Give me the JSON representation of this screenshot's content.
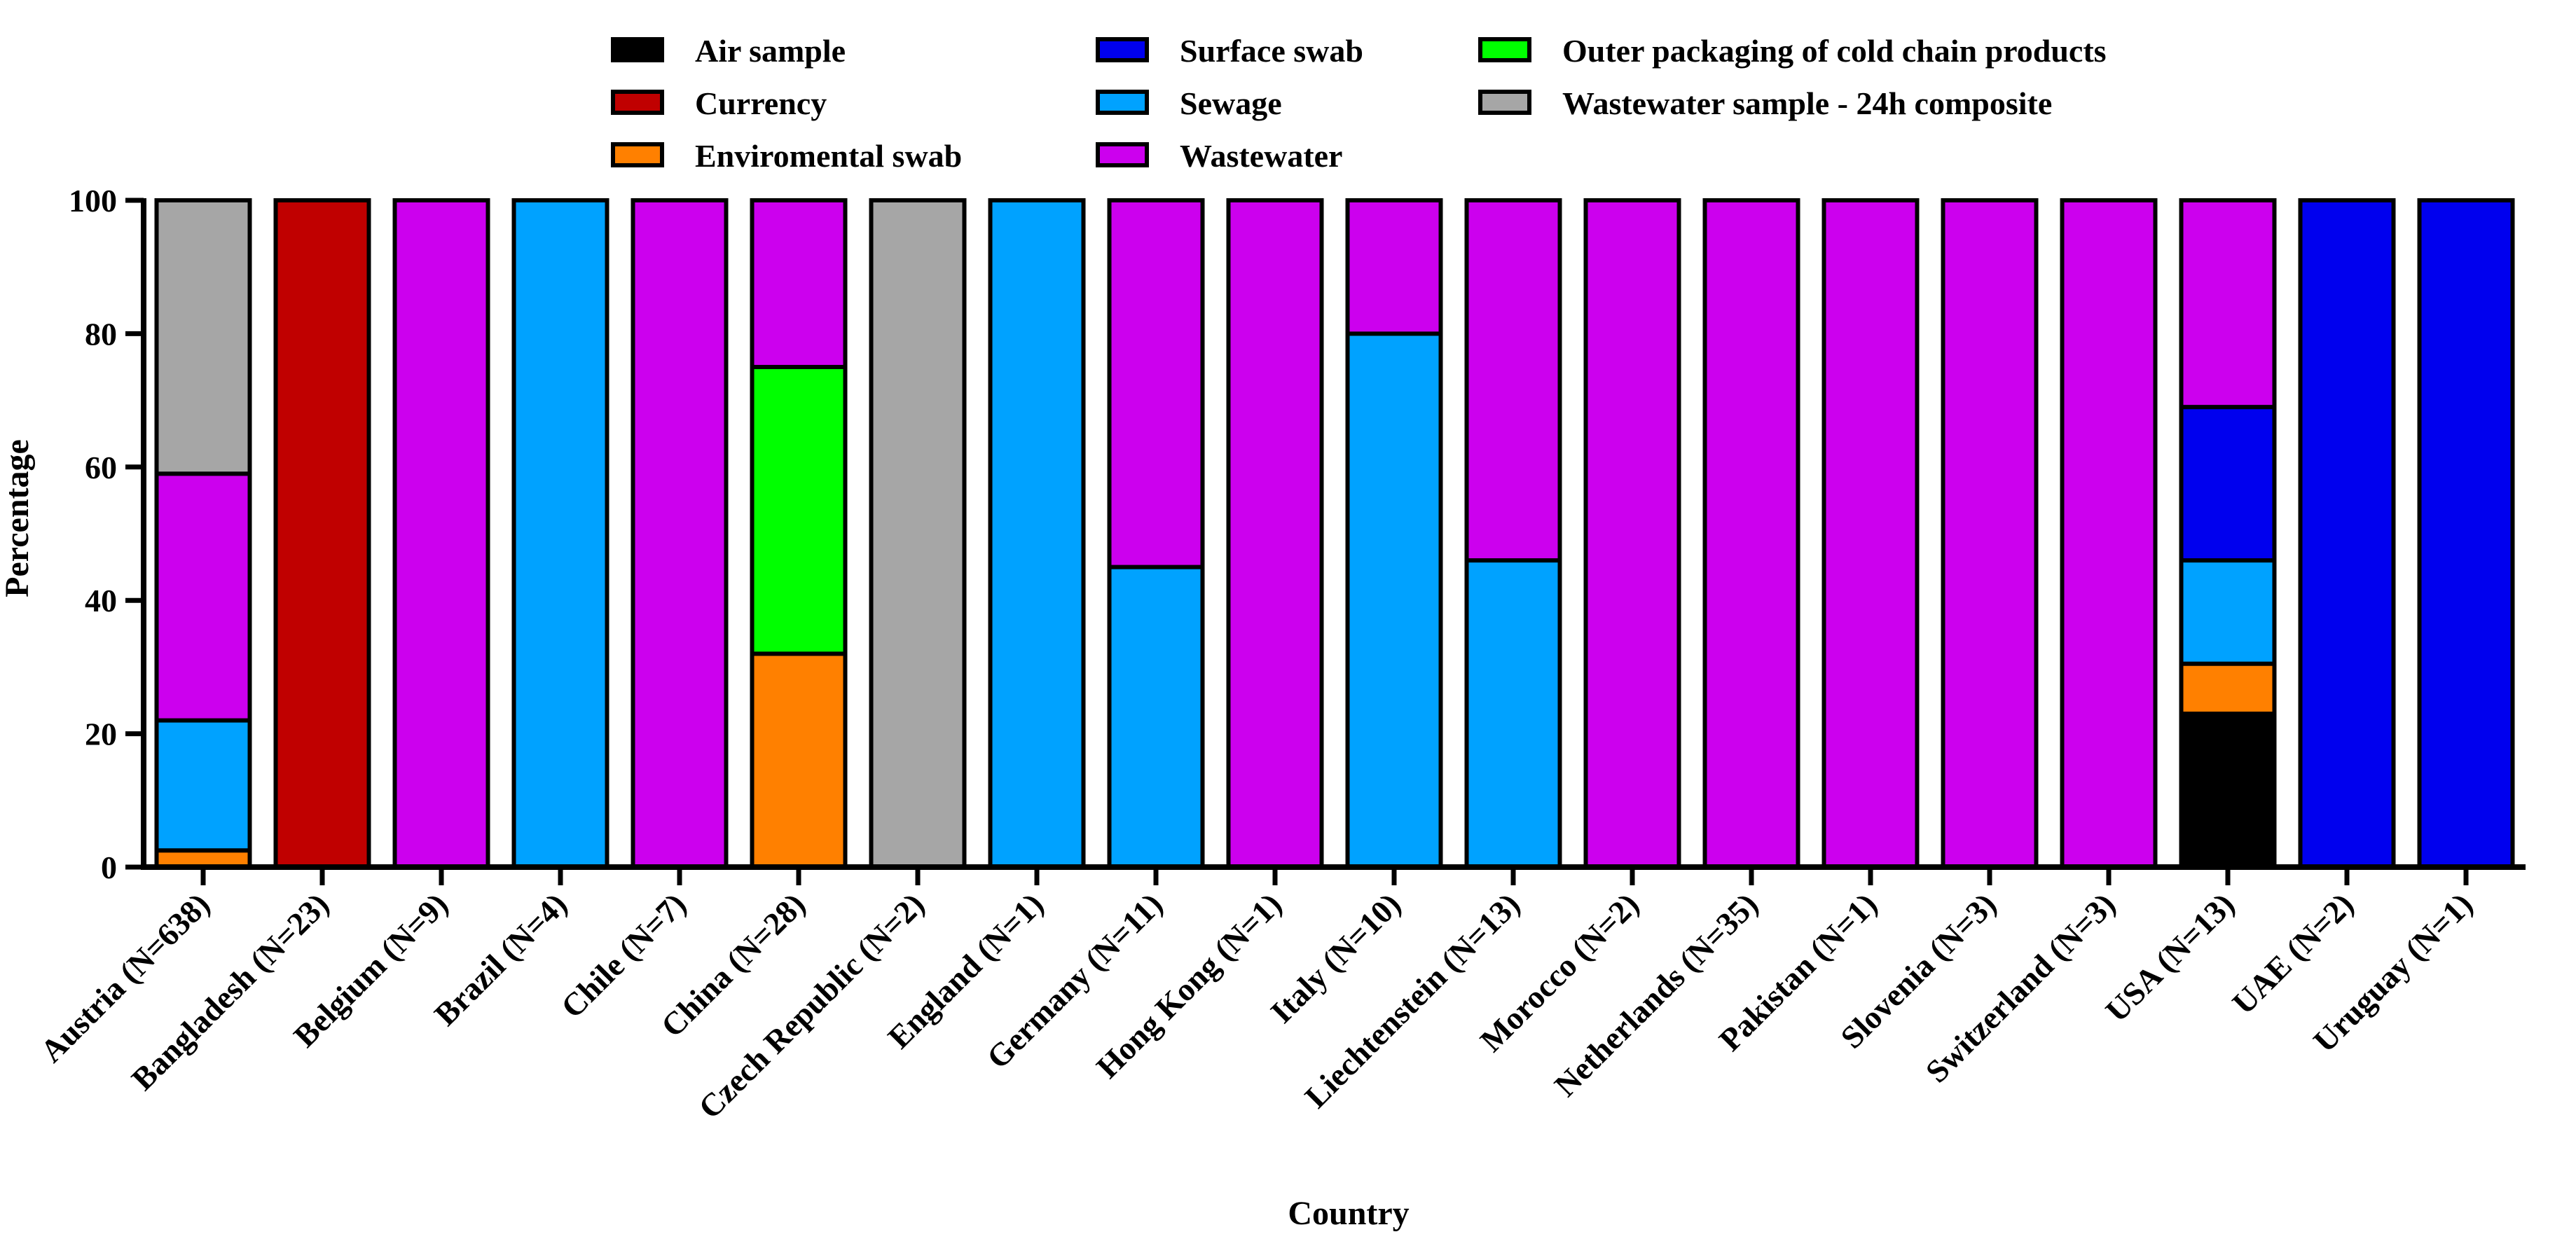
{
  "chart_data": {
    "type": "bar",
    "stacked": true,
    "title": "",
    "xlabel": "Country",
    "ylabel": "Percentage",
    "ylim": [
      0,
      100
    ],
    "yticks": [
      0,
      20,
      40,
      60,
      80,
      100
    ],
    "legend_position": "top",
    "categories": [
      "Austria (N=638)",
      "Bangladesh (N=23)",
      "Belgium (N=9)",
      "Brazil (N=4)",
      "Chile (N=7)",
      "China (N=28)",
      "Czech Republic (N=2)",
      "England (N=1)",
      "Germany (N=11)",
      "Hong Kong (N=1)",
      "Italy (N=10)",
      "Liechtenstein (N=13)",
      "Morocco (N=2)",
      "Netherlands (N=35)",
      "Pakistan (N=1)",
      "Slovenia (N=3)",
      "Switzerland (N=3)",
      "USA (N=13)",
      "UAE (N=2)",
      "Uruguay (N=1)"
    ],
    "series": [
      {
        "name": "Air sample",
        "color": "#000000",
        "values": [
          0,
          0,
          0,
          0,
          0,
          0,
          0,
          0,
          0,
          0,
          0,
          0,
          0,
          0,
          0,
          0,
          0,
          23,
          0,
          0
        ]
      },
      {
        "name": "Enviromental swab",
        "color": "#ff8000",
        "values": [
          2.5,
          0,
          0,
          0,
          0,
          32,
          0,
          0,
          0,
          0,
          0,
          0,
          0,
          0,
          0,
          0,
          0,
          7.5,
          0,
          0
        ]
      },
      {
        "name": "Sewage",
        "color": "#00a2ff",
        "values": [
          19.5,
          0,
          0,
          100,
          0,
          0,
          0,
          100,
          45,
          0,
          80,
          46,
          0,
          0,
          0,
          0,
          0,
          15.5,
          0,
          0
        ]
      },
      {
        "name": "Surface swab",
        "color": "#0000ee",
        "values": [
          0,
          0,
          0,
          0,
          0,
          0,
          0,
          0,
          0,
          0,
          0,
          0,
          0,
          0,
          0,
          0,
          0,
          23,
          100,
          100
        ]
      },
      {
        "name": "Outer packaging of cold chain products",
        "color": "#00ff00",
        "values": [
          0,
          0,
          0,
          0,
          0,
          43,
          0,
          0,
          0,
          0,
          0,
          0,
          0,
          0,
          0,
          0,
          0,
          0,
          0,
          0
        ]
      },
      {
        "name": "Wastewater",
        "color": "#cc00ee",
        "values": [
          37,
          0,
          100,
          0,
          100,
          25,
          0,
          0,
          55,
          100,
          20,
          54,
          100,
          100,
          100,
          100,
          100,
          31,
          0,
          0
        ]
      },
      {
        "name": "Currency",
        "color": "#c00000",
        "values": [
          0,
          100,
          0,
          0,
          0,
          0,
          0,
          0,
          0,
          0,
          0,
          0,
          0,
          0,
          0,
          0,
          0,
          0,
          0,
          0
        ]
      },
      {
        "name": "Wastewater sample - 24h composite",
        "color": "#a6a6a6",
        "values": [
          41,
          0,
          0,
          0,
          0,
          0,
          100,
          0,
          0,
          0,
          0,
          0,
          0,
          0,
          0,
          0,
          0,
          0,
          0,
          0
        ]
      }
    ],
    "legend": [
      {
        "series": "Air sample",
        "color": "#000000"
      },
      {
        "series": "Currency",
        "color": "#c00000"
      },
      {
        "series": "Enviromental swab",
        "color": "#ff8000"
      },
      {
        "series": "Surface swab",
        "color": "#0000ee"
      },
      {
        "series": "Sewage",
        "color": "#00a2ff"
      },
      {
        "series": "Wastewater",
        "color": "#cc00ee"
      },
      {
        "series": "Outer packaging of cold chain products",
        "color": "#00ff00"
      },
      {
        "series": "Wastewater sample - 24h composite",
        "color": "#a6a6a6"
      }
    ]
  }
}
